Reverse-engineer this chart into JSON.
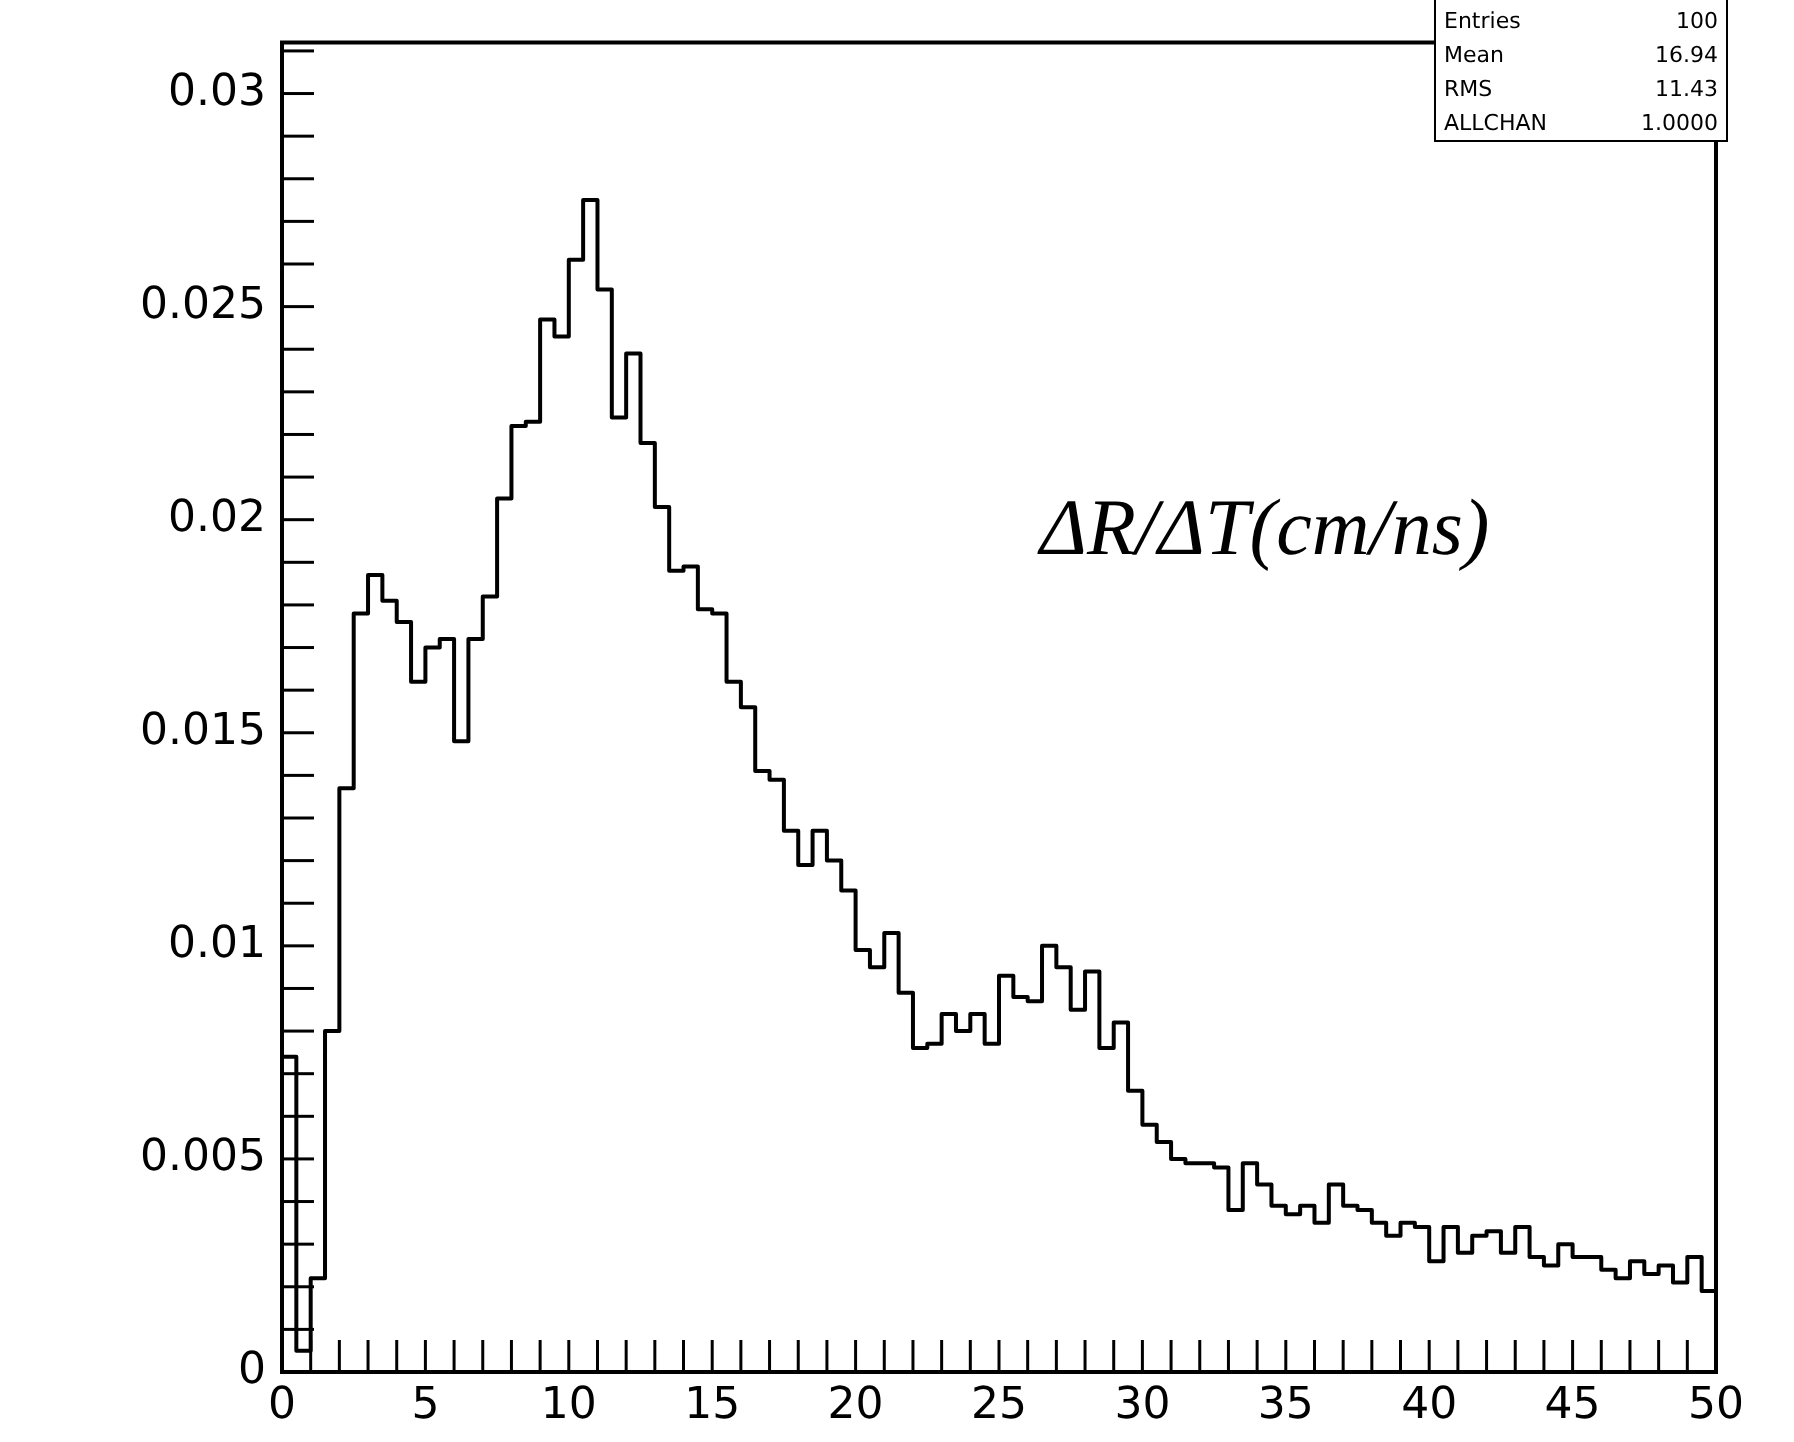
{
  "chart_data": {
    "type": "histogram",
    "xlabel": "ΔR/ΔT(cm/ns)",
    "color": "#000000",
    "grid": false,
    "legend": false,
    "annotations": [
      "Entries",
      "100",
      "Mean",
      "16.94",
      "RMS",
      "11.43",
      "ALLCHAN",
      "1.0000"
    ],
    "bins": [
      0,
      0.5,
      1,
      1.5,
      2,
      2.5,
      3,
      3.5,
      4,
      4.5,
      5,
      5.5,
      6,
      6.5,
      7,
      7.5,
      8,
      8.5,
      9,
      9.5,
      10,
      10.5,
      11,
      11.5,
      12,
      12.5,
      13,
      13.5,
      14,
      14.5,
      15,
      15.5,
      16,
      16.5,
      17,
      17.5,
      18,
      18.5,
      19,
      19.5,
      20,
      20.5,
      21,
      21.5,
      22,
      22.5,
      23,
      23.5,
      24,
      24.5,
      25,
      25.5,
      26,
      26.5,
      27,
      27.5,
      28,
      28.5,
      29,
      29.5,
      30,
      30.5,
      31,
      31.5,
      32,
      32.5,
      33,
      33.5,
      34,
      34.5,
      35,
      35.5,
      36,
      36.5,
      37,
      37.5,
      38,
      38.5,
      39,
      39.5,
      40,
      40.5,
      41,
      41.5,
      42,
      42.5,
      43,
      43.5,
      44,
      44.5,
      45,
      45.5,
      46,
      46.5,
      47,
      47.5,
      48,
      48.5,
      49,
      49.5,
      50
    ],
    "values": [
      0.0074,
      0.0005,
      0.0022,
      0.008,
      0.0137,
      0.0178,
      0.0187,
      0.0181,
      0.0176,
      0.0162,
      0.017,
      0.0172,
      0.0148,
      0.0172,
      0.0182,
      0.0205,
      0.0222,
      0.0223,
      0.0247,
      0.0243,
      0.0261,
      0.0275,
      0.0254,
      0.0224,
      0.0239,
      0.0218,
      0.0203,
      0.0188,
      0.0189,
      0.0179,
      0.0178,
      0.0162,
      0.0156,
      0.0141,
      0.0139,
      0.0127,
      0.0119,
      0.0127,
      0.012,
      0.0113,
      0.0099,
      0.0095,
      0.0103,
      0.0089,
      0.0076,
      0.0077,
      0.0084,
      0.008,
      0.0084,
      0.0077,
      0.0093,
      0.0088,
      0.0087,
      0.01,
      0.0095,
      0.0085,
      0.0094,
      0.0076,
      0.0082,
      0.0066,
      0.0058,
      0.0054,
      0.005,
      0.0049,
      0.0049,
      0.0048,
      0.0038,
      0.0049,
      0.0044,
      0.0039,
      0.0037,
      0.0039,
      0.0035,
      0.0044,
      0.0039,
      0.0038,
      0.0035,
      0.0032,
      0.0035,
      0.0034,
      0.0026,
      0.0034,
      0.0028,
      0.0032,
      0.0033,
      0.0028,
      0.0034,
      0.0027,
      0.0025,
      0.003,
      0.0027,
      0.0027,
      0.0024,
      0.0022,
      0.0026,
      0.0023,
      0.0025,
      0.0021,
      0.0027,
      0.0019
    ],
    "xlim": [
      0,
      50
    ],
    "ylim": [
      0,
      0.0312
    ],
    "xticks": [
      0,
      {
        "value": 1,
        "label": null
      },
      {
        "value": 2,
        "label": null
      },
      {
        "value": 3,
        "label": null
      },
      {
        "value": 4,
        "label": null
      },
      5,
      {
        "value": 6,
        "label": null
      },
      {
        "value": 7,
        "label": null
      },
      {
        "value": 8,
        "label": null
      },
      {
        "value": 9,
        "label": null
      },
      10,
      {
        "value": 11,
        "label": null
      },
      {
        "value": 12,
        "label": null
      },
      {
        "value": 13,
        "label": null
      },
      {
        "value": 14,
        "label": null
      },
      15,
      {
        "value": 16,
        "label": null
      },
      {
        "value": 17,
        "label": null
      },
      {
        "value": 18,
        "label": null
      },
      {
        "value": 19,
        "label": null
      },
      20,
      {
        "value": 21,
        "label": null
      },
      {
        "value": 22,
        "label": null
      },
      {
        "value": 23,
        "label": null
      },
      {
        "value": 24,
        "label": null
      },
      25,
      {
        "value": 26,
        "label": null
      },
      {
        "value": 27,
        "label": null
      },
      {
        "value": 28,
        "label": null
      },
      {
        "value": 29,
        "label": null
      },
      30,
      {
        "value": 31,
        "label": null
      },
      {
        "value": 32,
        "label": null
      },
      {
        "value": 33,
        "label": null
      },
      {
        "value": 34,
        "label": null
      },
      35,
      {
        "value": 36,
        "label": null
      },
      {
        "value": 37,
        "label": null
      },
      {
        "value": 38,
        "label": null
      },
      {
        "value": 39,
        "label": null
      },
      40,
      {
        "value": 41,
        "label": null
      },
      {
        "value": 42,
        "label": null
      },
      {
        "value": 43,
        "label": null
      },
      {
        "value": 44,
        "label": null
      },
      45,
      {
        "value": 46,
        "label": null
      },
      {
        "value": 47,
        "label": null
      },
      {
        "value": 48,
        "label": null
      },
      {
        "value": 49,
        "label": null
      },
      50
    ],
    "yticks": [
      0,
      {
        "value": 0.001,
        "label": null
      },
      {
        "value": 0.002,
        "label": null
      },
      {
        "value": 0.003,
        "label": null
      },
      {
        "value": 0.004,
        "label": null
      },
      0.005,
      {
        "value": 0.006,
        "label": null
      },
      {
        "value": 0.007,
        "label": null
      },
      {
        "value": 0.008,
        "label": null
      },
      {
        "value": 0.009,
        "label": null
      },
      0.01,
      {
        "value": 0.011,
        "label": null
      },
      {
        "value": 0.012,
        "label": null
      },
      {
        "value": 0.013,
        "label": null
      },
      {
        "value": 0.014,
        "label": null
      },
      0.015,
      {
        "value": 0.016,
        "label": null
      },
      {
        "value": 0.017,
        "label": null
      },
      {
        "value": 0.018,
        "label": null
      },
      {
        "value": 0.019,
        "label": null
      },
      0.02,
      {
        "value": 0.021,
        "label": null
      },
      {
        "value": 0.022,
        "label": null
      },
      {
        "value": 0.023,
        "label": null
      },
      {
        "value": 0.024,
        "label": null
      },
      0.025,
      {
        "value": 0.026,
        "label": null
      },
      {
        "value": 0.027,
        "label": null
      },
      {
        "value": 0.028,
        "label": null
      },
      {
        "value": 0.029,
        "label": null
      },
      0.03,
      {
        "value": 0.031,
        "label": null
      }
    ]
  }
}
